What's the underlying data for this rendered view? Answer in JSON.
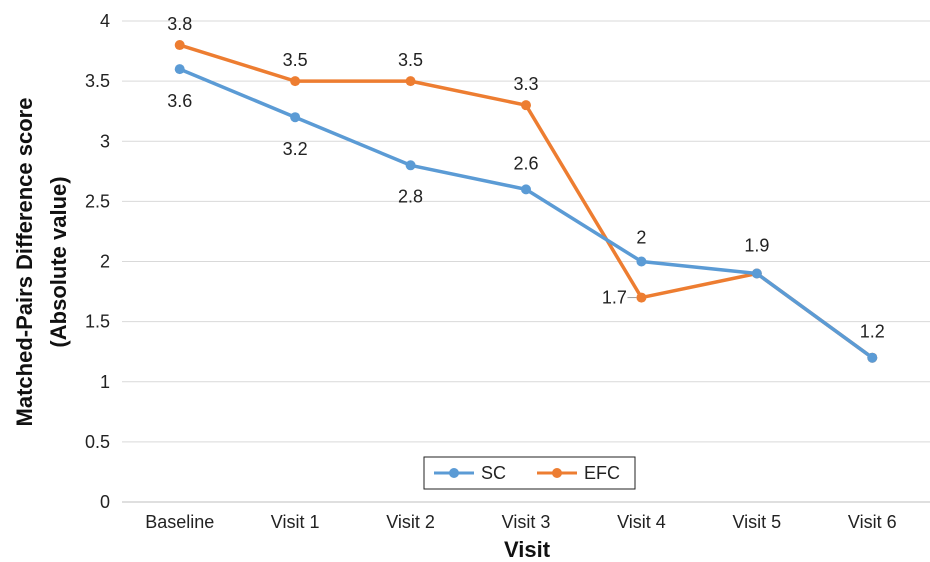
{
  "chart_data": {
    "type": "line",
    "categories": [
      "Baseline",
      "Visit 1",
      "Visit 2",
      "Visit 3",
      "Visit 4",
      "Visit 5",
      "Visit 6"
    ],
    "series": [
      {
        "name": "SC",
        "color": "#5b9bd5",
        "values": [
          3.6,
          3.2,
          2.8,
          2.6,
          2.0,
          1.9,
          1.2
        ],
        "labels": [
          "3.6",
          "3.2",
          "2.8",
          "2.6",
          "2",
          "",
          ""
        ]
      },
      {
        "name": "EFC",
        "color": "#ed7d31",
        "values": [
          3.8,
          3.5,
          3.5,
          3.3,
          1.7,
          1.9,
          1.2
        ],
        "labels": [
          "3.8",
          "3.5",
          "3.5",
          "3.3",
          "1.7",
          "1.9",
          "1.2"
        ]
      }
    ],
    "xlabel": "Visit",
    "ylabel": "Matched-Pairs Difference score (Absolute value)",
    "ylabel_lines": [
      "Matched-Pairs Difference score",
      "(Absolute value)"
    ],
    "ylim": [
      0,
      4
    ],
    "yticks": [
      "0",
      "0.5",
      "1",
      "1.5",
      "2",
      "2.5",
      "3",
      "3.5",
      "4"
    ],
    "grid": true,
    "legend": "bottom-center"
  }
}
